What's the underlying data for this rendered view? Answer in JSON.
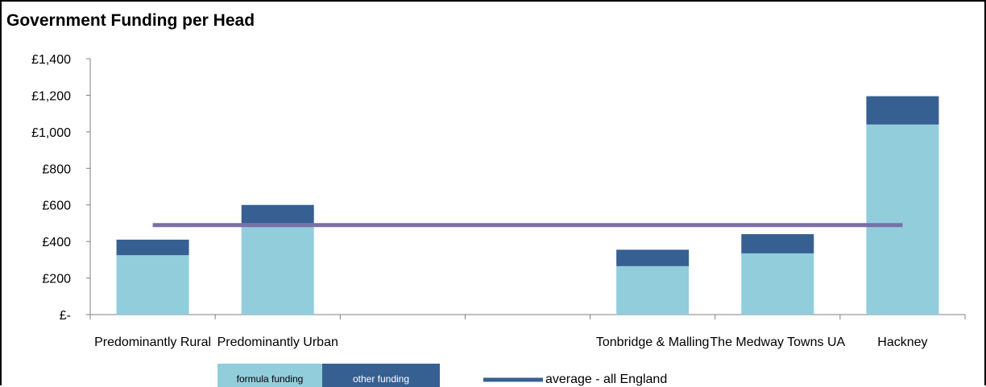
{
  "chart_data": {
    "type": "bar",
    "stacked": true,
    "title": "Government Funding per Head",
    "categories": [
      "Predominantly Rural",
      "Predominantly Urban",
      "",
      "",
      "Tonbridge & Malling",
      "The Medway Towns UA",
      "Hackney"
    ],
    "series": [
      {
        "name": "formula funding",
        "color": "#92cddc",
        "values": [
          325,
          500,
          null,
          null,
          265,
          335,
          1040
        ]
      },
      {
        "name": "other funding",
        "color": "#366092",
        "values": [
          85,
          100,
          null,
          null,
          90,
          105,
          155
        ]
      }
    ],
    "reference_line": {
      "name": "average - all England",
      "value": 490,
      "color": "#7a6fa8"
    },
    "ylim": [
      0,
      1400
    ],
    "yticks": [
      {
        "value": 0,
        "label": "£-"
      },
      {
        "value": 200,
        "label": "£200"
      },
      {
        "value": 400,
        "label": "£400"
      },
      {
        "value": 600,
        "label": "£600"
      },
      {
        "value": 800,
        "label": "£800"
      },
      {
        "value": 1000,
        "label": "£1,000"
      },
      {
        "value": 1200,
        "label": "£1,200"
      },
      {
        "value": 1400,
        "label": "£1,400"
      }
    ],
    "grid": false,
    "legend_position": "bottom"
  }
}
